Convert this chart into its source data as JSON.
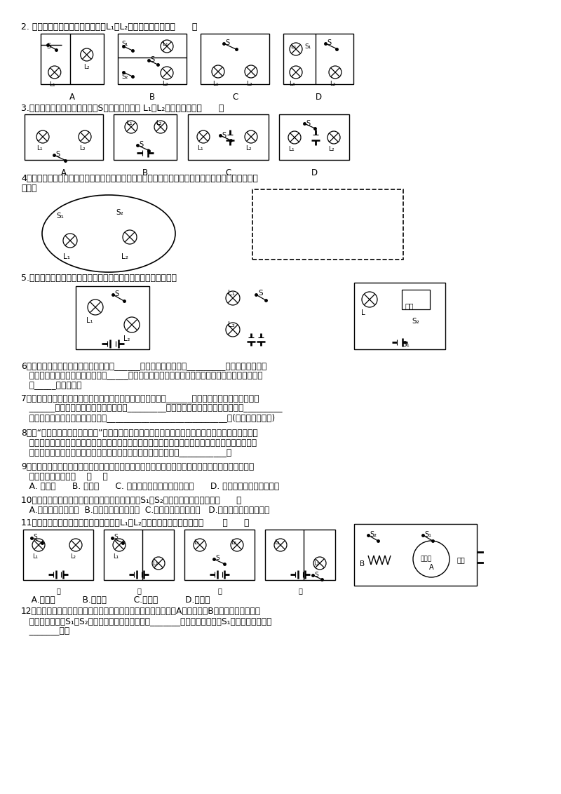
{
  "bg_color": "#ffffff",
  "text_color": "#000000",
  "q2": "2. 如图所示，开关都闭合时，灯泡L₁与L₂组成串联电路的是（      ）",
  "q3": "3.在如图所示的各电路中，开关S闭合后，小灯炮 L₁、L₂都能发光的是（      ）",
  "q4a": "4．按如图所示的电路，在虚线框内画出相应的电路图，并在画出的电路图上用彩色笔描出电路的干路",
  "q4b": "部分。",
  "q5": "5.根据电路图连接实物图，并在实物图上标出电路中的电流方向。",
  "q6": "6、要想得到持续的电流，电路中必须有______，而且电路还必须是_________。串联电路中，如",
  "q6b": "   果其中有一只灯泡坏了，其他灯泡_____正常工作；并联电路中，如果其中有一只灯泡坏了，其他灯",
  "q6c": "   泡_____正常工作。",
  "q7": "7、家庭电路中的电冰箔、电视机、电灯等用电器的连接方式是______联；开关和被控制的用电器是",
  "q7b": "   ______联；教室里的各盏照明灯之间是_________联的；电动机工作时，电能转化为_________",
  "q7c": "   能，家用电器中应用了电动机的有____________________________等(填一种家用电器)",
  "q8": "8、在“组成串联电路和并联电路”的实验中，小张将两个灯泡和一个开关与电源连成了一个电路，闭合",
  "q8b": "   开关后，发现两灯都不亮，经检查，小张发现有一个灯泡与灯座接触不良，小张将这个泡安装好后，",
  "q8c": "   再次闭合开关，两灯都发光了，由此可以判定，两灯的连接关系为___________。",
  "q9": "9、马路上的路灯总是一齐亮，一齐灭。如果它们其中一盏灯的灯丝断了，其它灯仍能正常发光。根据",
  "q9b": "   这些现象判断路灯是    （    ）",
  "q9c": "   A. 串联的      B. 并联的      C. 可能是串联的，也可能是并联      D. 不能确定是何种连接方式",
  "q10": "10、跳泉实验时连接了如图所示的电路，闭合开关S₁和S₂后，下列分析正确的是（      ）",
  "q10b": "   A.小灯泡亮、电铃响  B.小灯泡亮、电铃不响  C.小灯泡不亮、电铃响   D.小灯泡不亮、电铃不响",
  "q11": "11、如图所示的四个电路图中，开关能使L₁、L₂两盏灯同时发光和息灬的是       （      ）",
  "q11b": "   A.甲和丙          B.乙和丁          C.甲和丁          D.丙和丁",
  "q12": "12、如图是一把既能吹冷风又能吹热风的电吹风简化电路图，图中A是吹风机，B是电热丝。将插头插",
  "q12b": "   入插座，当开关S₁、S₂同时闭合，电吹风吹出的是_______风；若只闭合开关S₁，电吹风吹出的是",
  "q12c": "   _______风。"
}
